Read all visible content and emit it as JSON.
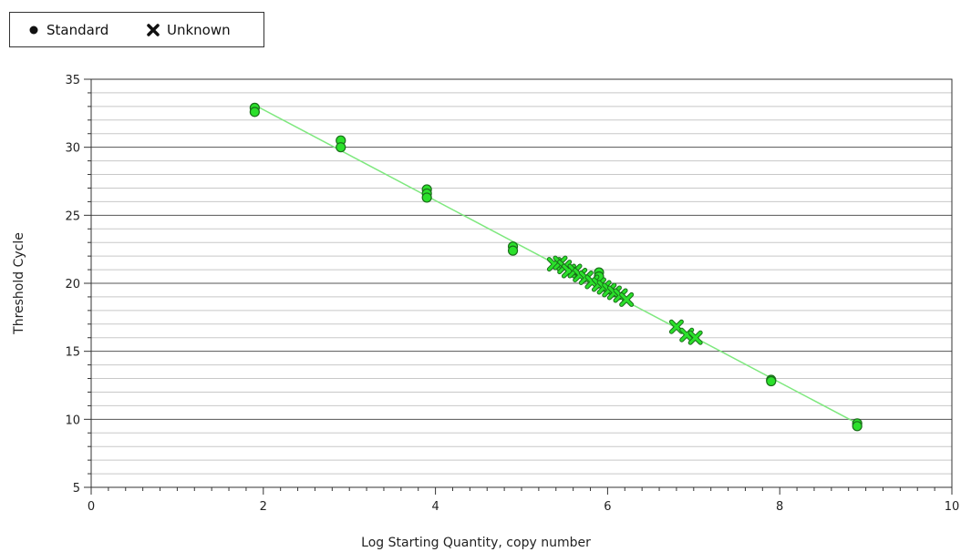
{
  "legend": {
    "items": [
      {
        "label": "Standard",
        "marker": "circle-icon"
      },
      {
        "label": "Unknown",
        "marker": "x-cross-icon"
      }
    ],
    "placement": "top-left, outside plot"
  },
  "colors": {
    "point_fill": "#2be02b",
    "point_stroke": "#1a6e1a",
    "fit_line": "#7ee87e",
    "grid_major": "#555555",
    "grid_minor": "#c8c8c8",
    "axis": "#333333"
  },
  "chart_data": {
    "type": "scatter",
    "title": "",
    "xlabel": "Log Starting Quantity, copy number",
    "ylabel": "Threshold Cycle",
    "xlim": [
      0,
      10
    ],
    "ylim": [
      5,
      35
    ],
    "xticks": [
      0,
      2,
      4,
      6,
      8,
      10
    ],
    "yticks": [
      5,
      10,
      15,
      20,
      25,
      30,
      35
    ],
    "grid": true,
    "series": [
      {
        "name": "Standard",
        "marker": "circle",
        "points": [
          {
            "x": 1.9,
            "y": 32.9
          },
          {
            "x": 1.9,
            "y": 32.6
          },
          {
            "x": 2.9,
            "y": 30.5
          },
          {
            "x": 2.9,
            "y": 30.0
          },
          {
            "x": 3.9,
            "y": 26.9
          },
          {
            "x": 3.9,
            "y": 26.6
          },
          {
            "x": 3.9,
            "y": 26.3
          },
          {
            "x": 4.9,
            "y": 22.7
          },
          {
            "x": 4.9,
            "y": 22.4
          },
          {
            "x": 5.9,
            "y": 20.8
          },
          {
            "x": 5.9,
            "y": 20.5
          },
          {
            "x": 7.9,
            "y": 12.9
          },
          {
            "x": 7.9,
            "y": 12.8
          },
          {
            "x": 8.9,
            "y": 9.7
          },
          {
            "x": 8.9,
            "y": 9.5
          }
        ]
      },
      {
        "name": "Unknown",
        "marker": "x",
        "points": [
          {
            "x": 5.38,
            "y": 21.4
          },
          {
            "x": 5.45,
            "y": 21.5
          },
          {
            "x": 5.5,
            "y": 21.2
          },
          {
            "x": 5.55,
            "y": 20.9
          },
          {
            "x": 5.62,
            "y": 20.9
          },
          {
            "x": 5.68,
            "y": 20.6
          },
          {
            "x": 5.75,
            "y": 20.4
          },
          {
            "x": 5.82,
            "y": 20.1
          },
          {
            "x": 5.9,
            "y": 19.9
          },
          {
            "x": 5.96,
            "y": 19.7
          },
          {
            "x": 6.02,
            "y": 19.5
          },
          {
            "x": 6.08,
            "y": 19.3
          },
          {
            "x": 6.15,
            "y": 19.1
          },
          {
            "x": 6.22,
            "y": 18.8
          },
          {
            "x": 6.8,
            "y": 16.8
          },
          {
            "x": 6.92,
            "y": 16.2
          },
          {
            "x": 7.02,
            "y": 16.0
          }
        ]
      }
    ],
    "fit_line": {
      "x": [
        1.9,
        8.9
      ],
      "y": [
        33.1,
        9.7
      ]
    }
  }
}
